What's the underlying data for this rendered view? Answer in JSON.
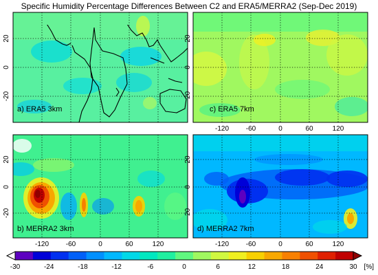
{
  "title": "Specific Humidity Percentage Differences Between C2 and ERA5/MERRA2 (Sep-Dec 2019)",
  "panels": [
    {
      "id": "a",
      "label": "a) ERA5 3km",
      "x_ticks": [],
      "y_ticks": [
        "20",
        "0",
        "-20"
      ]
    },
    {
      "id": "c",
      "label": "c) ERA5 7km",
      "x_ticks": [
        "-120",
        "-60",
        "0",
        "60",
        "120"
      ],
      "y_ticks": [
        "20",
        "0",
        "-20"
      ]
    },
    {
      "id": "b",
      "label": "b) MERRA2 3km",
      "x_ticks": [
        "-120",
        "-60",
        "0",
        "60",
        "120"
      ],
      "y_ticks": [
        "20",
        "0",
        "-20"
      ]
    },
    {
      "id": "d",
      "label": "d) MERRA2 7km",
      "x_ticks": [
        "-120",
        "-60",
        "0",
        "60",
        "120"
      ],
      "y_ticks": [
        "20",
        "0",
        "-20"
      ]
    }
  ],
  "colorbar": {
    "ticks": [
      "-30",
      "-24",
      "-18",
      "-12",
      "-6",
      "0",
      "6",
      "12",
      "18",
      "24",
      "30"
    ],
    "unit": "[%]",
    "range": [
      -30,
      30
    ],
    "colors": [
      "#ffffff",
      "#5d00c0",
      "#0000d8",
      "#0030f0",
      "#0060f8",
      "#0090ff",
      "#00b8ff",
      "#00d8e8",
      "#00e8c0",
      "#20f0a0",
      "#60f880",
      "#a0f860",
      "#d0f840",
      "#f0f020",
      "#f8d000",
      "#f8a800",
      "#f88000",
      "#f05000",
      "#e02000",
      "#c00000",
      "#900000"
    ]
  }
}
